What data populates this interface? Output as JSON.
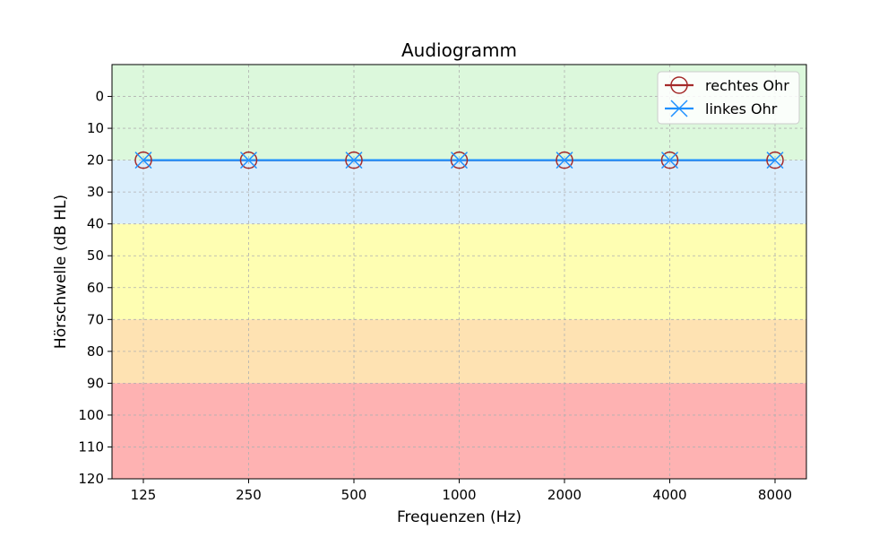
{
  "chart_data": {
    "type": "line",
    "title": "Audiogramm",
    "xlabel": "Frequenzen (Hz)",
    "ylabel": "Hörschwelle (dB HL)",
    "categories": [
      "125",
      "250",
      "500",
      "1000",
      "2000",
      "4000",
      "8000"
    ],
    "y_ticks": [
      "0",
      "10",
      "20",
      "30",
      "40",
      "50",
      "60",
      "70",
      "80",
      "90",
      "100",
      "110",
      "120"
    ],
    "ylim": [
      -10,
      120
    ],
    "y_inverted": true,
    "grid": true,
    "legend_position": "top-right",
    "bands": [
      {
        "from": -10,
        "to": 20,
        "color": "#dcf8dc"
      },
      {
        "from": 20,
        "to": 40,
        "color": "#daeefc"
      },
      {
        "from": 40,
        "to": 70,
        "color": "#fefeb2"
      },
      {
        "from": 70,
        "to": 90,
        "color": "#fee2b2"
      },
      {
        "from": 90,
        "to": 120,
        "color": "#feb2b2"
      }
    ],
    "series": [
      {
        "name": "rechtes Ohr",
        "marker": "circle",
        "color": "#a52a2a",
        "values": [
          20,
          20,
          20,
          20,
          20,
          20,
          20
        ]
      },
      {
        "name": "linkes Ohr",
        "marker": "x",
        "color": "#1e90ff",
        "values": [
          20,
          20,
          20,
          20,
          20,
          20,
          20
        ]
      }
    ]
  }
}
